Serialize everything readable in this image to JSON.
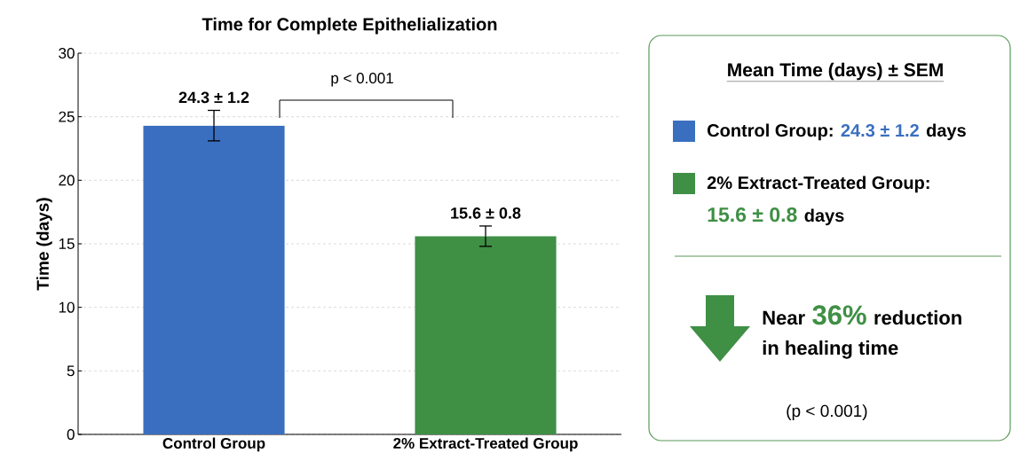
{
  "chart_data": [
    {
      "type": "bar",
      "title": "Time for Complete Epithelialization",
      "ylabel": "Time (days)",
      "categories": [
        "Control Group",
        "2% Extract-Treated Group"
      ],
      "values": [
        24.3,
        15.6
      ],
      "colors": [
        "#3a6fbf",
        "#3f8f45"
      ],
      "errors": [
        1.2,
        0.8
      ],
      "value_labels": [
        "24.3 ± 1.2",
        "15.6 ± 0.8"
      ],
      "ylim": [
        0,
        30
      ],
      "yticks": [
        0,
        5,
        10,
        15,
        20,
        25,
        30
      ],
      "grid": "y",
      "annotations": [
        "p < 0.001"
      ]
    },
    {
      "type": "other",
      "title": "Mean Time (days) ± SEM",
      "annotations": [
        "Control Group:",
        "24.3 ± 1.2",
        "days",
        "2% Extract-Treated Group:",
        "15.6 ± 0.8",
        "days",
        "Near",
        "36%",
        "reduction",
        "in healing time",
        "(p < 0.001)"
      ]
    }
  ]
}
